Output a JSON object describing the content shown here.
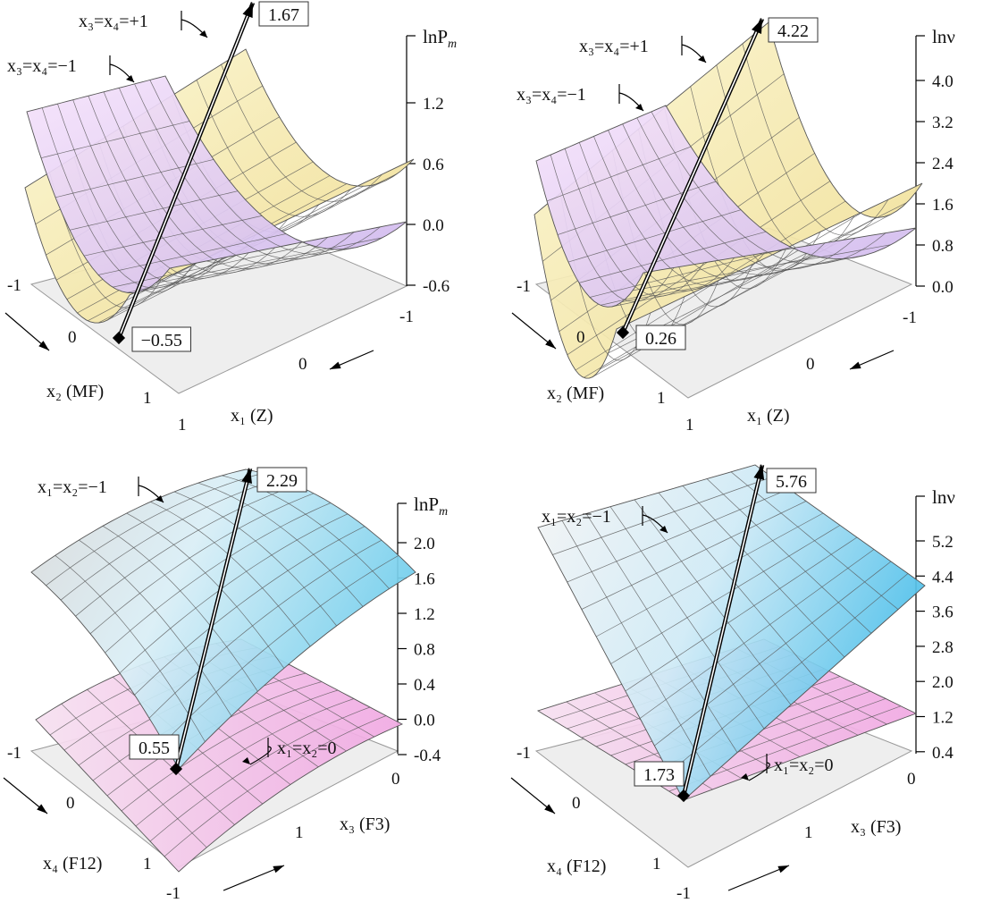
{
  "chart_data": [
    {
      "type": "surface",
      "zlabel": "lnP_m",
      "zticks": [
        "1.2",
        "0.6",
        "0.0",
        "-0.6"
      ],
      "x1_label": "x₁ (Z)",
      "x2_label": "x₂ (MF)",
      "x1_ticks": [
        "-1",
        "0",
        "1"
      ],
      "x2_ticks": [
        "-1",
        "0",
        "1"
      ],
      "surfaces": [
        {
          "label": "x₃=x₄=+1",
          "color": "#f6eeb0"
        },
        {
          "label": "x₃=x₄=−1",
          "color": "#e9d4f4"
        }
      ],
      "max_label": "1.67",
      "min_label": "−0.55",
      "max_value": 1.67,
      "min_value": -0.55
    },
    {
      "type": "surface",
      "zlabel": "lnν",
      "zticks": [
        "4.0",
        "3.2",
        "2.4",
        "1.6",
        "0.8",
        "0.0"
      ],
      "x1_label": "x₁ (Z)",
      "x2_label": "x₂ (MF)",
      "x1_ticks": [
        "-1",
        "0",
        "1"
      ],
      "x2_ticks": [
        "-1",
        "0",
        "1"
      ],
      "surfaces": [
        {
          "label": "x₃=x₄=+1",
          "color": "#f6eeb0"
        },
        {
          "label": "x₃=x₄=−1",
          "color": "#e9d4f4"
        }
      ],
      "max_label": "4.22",
      "min_label": "0.26",
      "max_value": 4.22,
      "min_value": 0.26
    },
    {
      "type": "surface",
      "zlabel": "lnP_m",
      "zticks": [
        "2.0",
        "1.6",
        "1.2",
        "0.8",
        "0.4",
        "0.0",
        "-0.4"
      ],
      "x3_label": "x₃ (F3)",
      "x4_label": "x₄ (F12)",
      "x3_ticks": [
        "-1",
        "0",
        "1"
      ],
      "x4_ticks": [
        "-1",
        "0",
        "1"
      ],
      "surfaces": [
        {
          "label": "x₁=x₂=−1",
          "color": "#a9e4f4"
        },
        {
          "label": "x₁=x₂=0",
          "color": "#f3c6ea"
        }
      ],
      "max_label": "2.29",
      "min_label": "0.55",
      "max_value": 2.29,
      "min_value": 0.55
    },
    {
      "type": "surface",
      "zlabel": "lnν",
      "zticks": [
        "5.2",
        "4.4",
        "3.6",
        "2.8",
        "2.0",
        "1.2",
        "0.4"
      ],
      "x3_label": "x₃ (F3)",
      "x4_label": "x₄ (F12)",
      "x3_ticks": [
        "-1",
        "0",
        "1"
      ],
      "x4_ticks": [
        "-1",
        "0",
        "1"
      ],
      "surfaces": [
        {
          "label": "x₁=x₂=−1",
          "color": "#a9e4f4"
        },
        {
          "label": "x₁=x₂=0",
          "color": "#f3c6ea"
        }
      ],
      "max_label": "5.76",
      "min_label": "1.73",
      "max_value": 5.76,
      "min_value": 1.73
    }
  ]
}
